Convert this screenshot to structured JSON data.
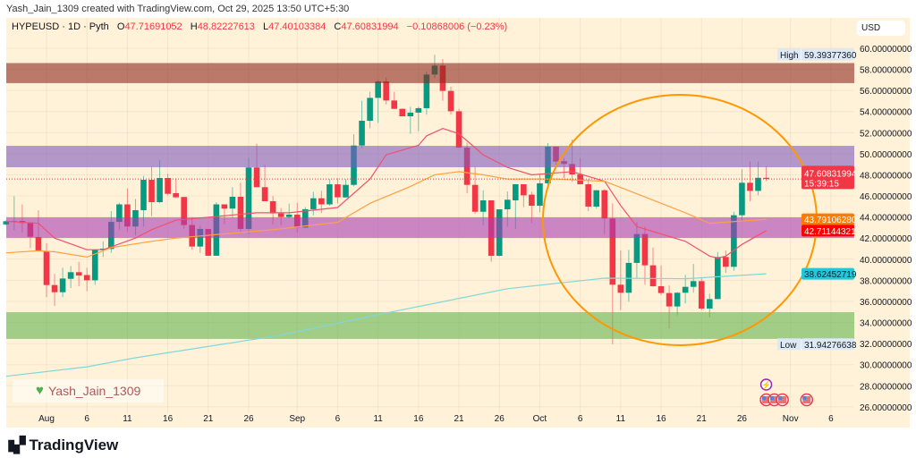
{
  "credit": "Yash_Jain_1309 created with TradingView.com, Oct 29, 2025 13:50 UTC+5:30",
  "legend": {
    "symbol": "HYPEUSD · 1D · Pyth",
    "o_label": "O",
    "o": "47.71691052",
    "h_label": "H",
    "h": "48.82227613",
    "l_label": "L",
    "l": "47.40103384",
    "c_label": "C",
    "c": "47.60831994",
    "change": "−0.10868006 (−0.23%)"
  },
  "currency": "USD",
  "watermark": {
    "icon": "green-heart-icon",
    "text": "Yash_Jain_1309"
  },
  "brand": {
    "logo": "tradingview-logo",
    "text": "TradingView"
  },
  "price_labels": {
    "high_label": "High",
    "high": "59.39377360",
    "last": "47.60831994",
    "countdown": "15:39:15",
    "ma_orange": "43.79106280",
    "ma_red": "42.71144321",
    "ma_teal": "38.62452719",
    "low_label": "Low",
    "low": "31.94276638"
  },
  "colors": {
    "up": "#089981",
    "down": "#f23645",
    "ma_red": "#f0506e",
    "ma_orange": "#ffa040",
    "ma_teal": "#7fd8d8",
    "circle": "#ff9800",
    "zone_brown": "rgba(140,40,30,0.6)",
    "zone_purple": "rgba(128,90,190,0.6)",
    "zone_magenta": "rgba(170,60,180,0.6)",
    "zone_green": "rgba(100,180,80,0.6)"
  },
  "events": [
    {
      "icon": "lightning-icon",
      "date": "2025-10-29",
      "row": 0
    },
    {
      "icon": "us-flag-icon",
      "date": "2025-10-29",
      "row": 1
    },
    {
      "icon": "us-flag-icon",
      "date": "2025-10-30",
      "row": 1
    },
    {
      "icon": "us-flag-icon",
      "date": "2025-10-31",
      "row": 1
    },
    {
      "icon": "us-flag-icon",
      "date": "2025-11-03",
      "row": 1
    }
  ],
  "chart_data": {
    "type": "candlestick",
    "symbol": "HYPEUSD",
    "interval": "1D",
    "ylim": [
      25,
      61
    ],
    "y_ticks": [
      26,
      28,
      30,
      32,
      34,
      36,
      38,
      40,
      42,
      44,
      46,
      48,
      50,
      52,
      54,
      56,
      58,
      60
    ],
    "y_tick_format": "8 decimals",
    "x_ticks": [
      {
        "label": "Aug",
        "date": "2025-08-01"
      },
      {
        "label": "6",
        "date": "2025-08-06"
      },
      {
        "label": "11",
        "date": "2025-08-11"
      },
      {
        "label": "16",
        "date": "2025-08-16"
      },
      {
        "label": "21",
        "date": "2025-08-21"
      },
      {
        "label": "26",
        "date": "2025-08-26"
      },
      {
        "label": "Sep",
        "date": "2025-09-01"
      },
      {
        "label": "6",
        "date": "2025-09-06"
      },
      {
        "label": "11",
        "date": "2025-09-11"
      },
      {
        "label": "16",
        "date": "2025-09-16"
      },
      {
        "label": "21",
        "date": "2025-09-21"
      },
      {
        "label": "26",
        "date": "2025-09-26"
      },
      {
        "label": "Oct",
        "date": "2025-10-01"
      },
      {
        "label": "6",
        "date": "2025-10-06"
      },
      {
        "label": "11",
        "date": "2025-10-11"
      },
      {
        "label": "16",
        "date": "2025-10-16"
      },
      {
        "label": "21",
        "date": "2025-10-21"
      },
      {
        "label": "26",
        "date": "2025-10-26"
      },
      {
        "label": "Nov",
        "date": "2025-11-01"
      },
      {
        "label": "6",
        "date": "2025-11-06"
      }
    ],
    "grid": true,
    "candles_columns": [
      "date",
      "open",
      "high",
      "low",
      "close"
    ],
    "candles": [
      [
        "2025-07-27",
        43.3,
        43.7,
        43.2,
        43.6
      ],
      [
        "2025-07-28",
        43.6,
        45.97,
        42.75,
        43.62
      ],
      [
        "2025-07-29",
        43.63,
        45.2,
        42.5,
        43.43
      ],
      [
        "2025-07-30",
        43.5,
        43.5,
        41.06,
        42.13
      ],
      [
        "2025-07-31",
        42.1,
        44.65,
        40.7,
        40.75
      ],
      [
        "2025-08-01",
        40.75,
        41.5,
        36.4,
        37.55
      ],
      [
        "2025-08-02",
        37.55,
        38.6,
        35.57,
        36.87
      ],
      [
        "2025-08-03",
        36.87,
        39.2,
        36.4,
        38.17
      ],
      [
        "2025-08-04",
        38.14,
        39.36,
        37.27,
        38.77
      ],
      [
        "2025-08-05",
        38.77,
        39.75,
        37.44,
        38.45
      ],
      [
        "2025-08-06",
        38.5,
        39.2,
        36.96,
        38.0
      ],
      [
        "2025-08-07",
        38.0,
        40.9,
        37.58,
        40.9
      ],
      [
        "2025-08-08",
        40.9,
        41.7,
        40.2,
        41.0
      ],
      [
        "2025-08-09",
        40.97,
        44.56,
        40.6,
        43.54
      ],
      [
        "2025-08-10",
        43.54,
        45.35,
        42.8,
        45.2
      ],
      [
        "2025-08-11",
        45.2,
        46.7,
        42.6,
        43.1
      ],
      [
        "2025-08-12",
        43.1,
        45.72,
        42.24,
        44.65
      ],
      [
        "2025-08-13",
        44.65,
        47.9,
        43.1,
        47.53
      ],
      [
        "2025-08-14",
        47.53,
        48.75,
        44.08,
        45.41
      ],
      [
        "2025-08-15",
        45.41,
        49.4,
        45.3,
        47.7
      ],
      [
        "2025-08-16",
        47.7,
        48.1,
        46.06,
        46.2
      ],
      [
        "2025-08-17",
        46.26,
        47.67,
        45.8,
        45.87
      ],
      [
        "2025-08-18",
        45.9,
        45.9,
        42.87,
        43.24
      ],
      [
        "2025-08-19",
        43.24,
        44.0,
        40.9,
        41.2
      ],
      [
        "2025-08-20",
        41.2,
        43.15,
        40.6,
        42.87
      ],
      [
        "2025-08-21",
        42.87,
        42.87,
        40.33,
        40.33
      ],
      [
        "2025-08-22",
        40.33,
        45.4,
        40.33,
        45.2
      ],
      [
        "2025-08-23",
        45.2,
        45.2,
        43.3,
        44.8
      ],
      [
        "2025-08-24",
        44.8,
        46.83,
        43.9,
        45.92
      ],
      [
        "2025-08-25",
        45.92,
        47.25,
        42.53,
        42.87
      ],
      [
        "2025-08-26",
        42.87,
        49.6,
        42.4,
        48.7
      ],
      [
        "2025-08-27",
        48.7,
        50.96,
        46.83,
        46.83
      ],
      [
        "2025-08-28",
        46.83,
        48.95,
        45.5,
        45.5
      ],
      [
        "2025-08-29",
        45.5,
        46.0,
        43.3,
        44.34
      ],
      [
        "2025-08-30",
        44.34,
        44.85,
        43.24,
        44.0
      ],
      [
        "2025-08-31",
        44.0,
        45.27,
        43.9,
        44.23
      ],
      [
        "2025-09-01",
        44.23,
        45.36,
        42.53,
        43.0
      ],
      [
        "2025-09-02",
        43.0,
        44.93,
        42.93,
        44.74
      ],
      [
        "2025-09-03",
        44.74,
        46.4,
        44.17,
        45.78
      ],
      [
        "2025-09-04",
        45.78,
        46.49,
        44.37,
        45.2
      ],
      [
        "2025-09-05",
        45.2,
        47.6,
        45.07,
        47.1
      ],
      [
        "2025-09-06",
        47.1,
        47.68,
        45.3,
        45.87
      ],
      [
        "2025-09-07",
        45.86,
        47.6,
        45.86,
        47.05
      ],
      [
        "2025-09-08",
        47.05,
        51.86,
        46.9,
        50.78
      ],
      [
        "2025-09-09",
        50.78,
        55.02,
        50.5,
        53.13
      ],
      [
        "2025-09-10",
        53.13,
        55.87,
        52.42,
        55.3
      ],
      [
        "2025-09-11",
        55.3,
        57.0,
        52.93,
        56.86
      ],
      [
        "2025-09-12",
        56.86,
        57.23,
        54.68,
        55.05
      ],
      [
        "2025-09-13",
        55.05,
        55.87,
        54.26,
        54.26
      ],
      [
        "2025-09-14",
        54.26,
        54.3,
        53.55,
        53.55
      ],
      [
        "2025-09-15",
        53.55,
        54.46,
        51.9,
        53.9
      ],
      [
        "2025-09-16",
        53.9,
        54.46,
        52.14,
        54.32
      ],
      [
        "2025-09-17",
        54.32,
        57.79,
        53.7,
        57.51
      ],
      [
        "2025-09-18",
        57.51,
        59.39,
        57.17,
        58.36
      ],
      [
        "2025-09-19",
        58.36,
        58.98,
        55.02,
        55.96
      ],
      [
        "2025-09-20",
        55.96,
        56.38,
        53.7,
        54.03
      ],
      [
        "2025-09-21",
        54.03,
        54.26,
        50.58,
        50.58
      ],
      [
        "2025-09-22",
        50.58,
        51.06,
        46.26,
        47.05
      ],
      [
        "2025-09-23",
        47.05,
        48.75,
        44.3,
        44.5
      ],
      [
        "2025-09-24",
        44.5,
        46.54,
        43.23,
        45.58
      ],
      [
        "2025-09-25",
        45.58,
        45.58,
        39.76,
        40.32
      ],
      [
        "2025-09-26",
        40.32,
        44.73,
        40.27,
        44.73
      ],
      [
        "2025-09-27",
        44.73,
        46.43,
        43.09,
        45.64
      ],
      [
        "2025-09-28",
        45.58,
        47.11,
        42.87,
        47.11
      ],
      [
        "2025-09-29",
        47.11,
        47.11,
        44.93,
        46.06
      ],
      [
        "2025-09-30",
        46.12,
        46.4,
        43.43,
        45.07
      ],
      [
        "2025-10-01",
        45.07,
        48.04,
        44.45,
        47.2
      ],
      [
        "2025-10-02",
        47.2,
        51.01,
        46.9,
        50.67
      ],
      [
        "2025-10-03",
        50.67,
        50.67,
        48.75,
        49.26
      ],
      [
        "2025-10-04",
        49.3,
        49.6,
        47.68,
        49.03
      ],
      [
        "2025-10-05",
        49.03,
        51.35,
        47.34,
        48.04
      ],
      [
        "2025-10-06",
        48.04,
        49.6,
        47.11,
        47.11
      ],
      [
        "2025-10-07",
        47.11,
        47.62,
        44.57,
        44.99
      ],
      [
        "2025-10-08",
        44.99,
        46.54,
        44.79,
        46.54
      ],
      [
        "2025-10-09",
        46.54,
        46.63,
        42.39,
        43.86
      ],
      [
        "2025-10-10",
        43.86,
        45.3,
        31.94,
        37.58
      ],
      [
        "2025-10-11",
        37.58,
        40.83,
        35.18,
        36.82
      ],
      [
        "2025-10-12",
        36.82,
        40.89,
        35.97,
        39.65
      ],
      [
        "2025-10-13",
        39.65,
        43.52,
        38.23,
        42.39
      ],
      [
        "2025-10-14",
        42.39,
        43.1,
        37.58,
        39.42
      ],
      [
        "2025-10-15",
        39.42,
        41.12,
        37.39,
        37.44
      ],
      [
        "2025-10-16",
        37.44,
        39.42,
        36.59,
        36.79
      ],
      [
        "2025-10-17",
        36.79,
        37.5,
        33.43,
        35.52
      ],
      [
        "2025-10-18",
        35.52,
        36.87,
        34.67,
        36.82
      ],
      [
        "2025-10-19",
        36.82,
        38.51,
        35.8,
        37.38
      ],
      [
        "2025-10-20",
        37.38,
        39.56,
        36.82,
        37.92
      ],
      [
        "2025-10-21",
        37.92,
        38.29,
        35.18,
        35.32
      ],
      [
        "2025-10-22",
        35.32,
        36.73,
        34.47,
        36.22
      ],
      [
        "2025-10-23",
        36.22,
        40.69,
        36.22,
        40.21
      ],
      [
        "2025-10-24",
        40.21,
        40.83,
        38.71,
        39.28
      ],
      [
        "2025-10-25",
        39.28,
        44.5,
        38.91,
        44.17
      ],
      [
        "2025-10-26",
        44.17,
        48.52,
        43.52,
        47.25
      ],
      [
        "2025-10-27",
        47.25,
        49.26,
        45.5,
        46.48
      ],
      [
        "2025-10-28",
        46.48,
        49.26,
        46.06,
        47.72
      ],
      [
        "2025-10-29",
        47.72,
        48.82,
        47.4,
        47.61
      ]
    ],
    "moving_averages": [
      {
        "color": "#f0506e",
        "points": [
          [
            "2025-07-27",
            43.6
          ],
          [
            "2025-07-31",
            43.4
          ],
          [
            "2025-08-02",
            42.0
          ],
          [
            "2025-08-06",
            40.9
          ],
          [
            "2025-08-08",
            40.9
          ],
          [
            "2025-08-12",
            42.0
          ],
          [
            "2025-08-14",
            42.8
          ],
          [
            "2025-08-17",
            43.7
          ],
          [
            "2025-08-27",
            44.4
          ],
          [
            "2025-08-31",
            44.4
          ],
          [
            "2025-09-06",
            44.9
          ],
          [
            "2025-09-10",
            47.6
          ],
          [
            "2025-09-12",
            49.9
          ],
          [
            "2025-09-16",
            50.8
          ],
          [
            "2025-09-17",
            51.7
          ],
          [
            "2025-09-19",
            52.4
          ],
          [
            "2025-09-21",
            51.9
          ],
          [
            "2025-09-24",
            49.9
          ],
          [
            "2025-09-27",
            48.7
          ],
          [
            "2025-09-30",
            48.0
          ],
          [
            "2025-10-05",
            48.3
          ],
          [
            "2025-10-09",
            47.4
          ],
          [
            "2025-10-11",
            45.1
          ],
          [
            "2025-10-13",
            43.1
          ],
          [
            "2025-10-19",
            41.7
          ],
          [
            "2025-10-22",
            40.3
          ],
          [
            "2025-10-23",
            40.1
          ],
          [
            "2025-10-24",
            40.3
          ],
          [
            "2025-10-26",
            41.4
          ],
          [
            "2025-10-29",
            42.71
          ]
        ]
      },
      {
        "color": "#ffa040",
        "points": [
          [
            "2025-07-27",
            40.6
          ],
          [
            "2025-07-31",
            40.8
          ],
          [
            "2025-08-02",
            40.7
          ],
          [
            "2025-08-06",
            40.2
          ],
          [
            "2025-08-09",
            41.1
          ],
          [
            "2025-08-14",
            41.7
          ],
          [
            "2025-08-17",
            42.0
          ],
          [
            "2025-08-23",
            42.4
          ],
          [
            "2025-08-29",
            42.8
          ],
          [
            "2025-09-06",
            43.5
          ],
          [
            "2025-09-10",
            45.3
          ],
          [
            "2025-09-15",
            46.9
          ],
          [
            "2025-09-18",
            48.0
          ],
          [
            "2025-09-21",
            48.3
          ],
          [
            "2025-09-24",
            48.0
          ],
          [
            "2025-09-27",
            47.6
          ],
          [
            "2025-10-03",
            47.6
          ],
          [
            "2025-10-09",
            47.4
          ],
          [
            "2025-10-13",
            46.2
          ],
          [
            "2025-10-19",
            44.4
          ],
          [
            "2025-10-22",
            43.4
          ],
          [
            "2025-10-29",
            43.79
          ]
        ]
      },
      {
        "color": "#7fd8d8",
        "points": [
          [
            "2025-07-27",
            28.9
          ],
          [
            "2025-08-06",
            29.8
          ],
          [
            "2025-08-12",
            30.65
          ],
          [
            "2025-08-30",
            32.8
          ],
          [
            "2025-09-12",
            34.9
          ],
          [
            "2025-09-27",
            37.2
          ],
          [
            "2025-10-03",
            37.7
          ],
          [
            "2025-10-09",
            38.2
          ],
          [
            "2025-10-19",
            38.15
          ],
          [
            "2025-10-29",
            38.62
          ]
        ]
      }
    ],
    "zones": [
      {
        "color": "rgba(140,40,30,0.6)",
        "from": 56.7,
        "to": 58.6
      },
      {
        "color": "rgba(128,90,190,0.6)",
        "from": 48.72,
        "to": 50.75
      },
      {
        "color": "rgba(170,60,180,0.6)",
        "from": 42.02,
        "to": 43.97
      },
      {
        "color": "rgba(100,180,80,0.6)",
        "from": 32.44,
        "to": 34.98
      }
    ],
    "last_price": 47.60831994,
    "high": 59.3937736,
    "low": 31.94276638
  }
}
